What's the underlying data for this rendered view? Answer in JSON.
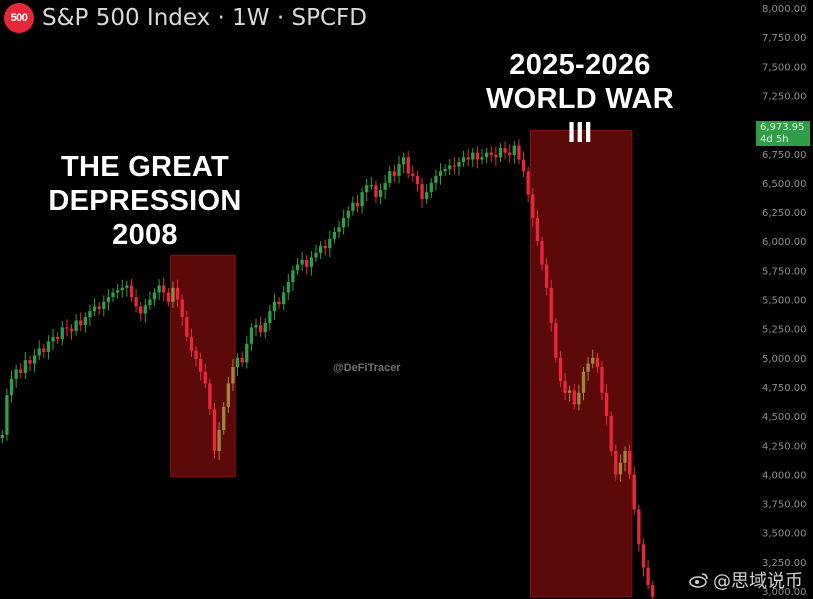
{
  "header": {
    "logo_text": "500",
    "title": "S&P 500 Index · 1W · SPCFD"
  },
  "annotations": {
    "depression_line1": "THE GREAT",
    "depression_line2": "DEPRESSION",
    "depression_line3": "2008",
    "war_line1": "2025-2026",
    "war_line2": "WORLD WAR III"
  },
  "watermark": "@DeFiTracer",
  "weibo_text": "@思域说币",
  "last_price": {
    "value": "6,973.95",
    "countdown": "4d 5h",
    "color": "#2f9e46"
  },
  "colors": {
    "up": "#2f9e46",
    "down": "#e8283a",
    "highlight": "#6b0a0a",
    "background": "#000000"
  },
  "chart_data": {
    "type": "candlestick",
    "ylim": [
      3000,
      8000
    ],
    "y_ticks": [
      3000,
      3250,
      3500,
      3750,
      4000,
      4250,
      4500,
      4750,
      5000,
      5250,
      5500,
      5750,
      6000,
      6250,
      6500,
      6750,
      7000,
      7250,
      7500,
      7750,
      8000
    ],
    "y_tick_labels": [
      "3,000.00",
      "3,250.00",
      "3,500.00",
      "3,750.00",
      "4,000.00",
      "4,250.00",
      "4,500.00",
      "4,750.00",
      "5,000.00",
      "5,250.00",
      "5,500.00",
      "5,750.00",
      "6,000.00",
      "6,250.00",
      "6,500.00",
      "6,750.00",
      "7,000.00",
      "7,250.00",
      "7,500.00",
      "7,750.00",
      "8,000.00"
    ],
    "closes": [
      4340,
      4680,
      4820,
      4900,
      4870,
      4980,
      4950,
      5020,
      5080,
      5050,
      5140,
      5180,
      5160,
      5260,
      5250,
      5230,
      5320,
      5280,
      5350,
      5400,
      5440,
      5420,
      5480,
      5520,
      5560,
      5580,
      5600,
      5620,
      5520,
      5440,
      5380,
      5450,
      5500,
      5560,
      5620,
      5560,
      5480,
      5600,
      5500,
      5350,
      5180,
      5060,
      4990,
      4880,
      4780,
      4560,
      4200,
      4380,
      4580,
      4780,
      4920,
      5000,
      4960,
      5120,
      5260,
      5280,
      5220,
      5300,
      5400,
      5480,
      5460,
      5560,
      5650,
      5750,
      5800,
      5840,
      5780,
      5860,
      5900,
      5960,
      5940,
      6020,
      6080,
      6120,
      6200,
      6260,
      6330,
      6300,
      6420,
      6480,
      6480,
      6380,
      6440,
      6500,
      6600,
      6560,
      6660,
      6720,
      6580,
      6560,
      6490,
      6360,
      6420,
      6500,
      6560,
      6600,
      6620,
      6650,
      6640,
      6680,
      6720,
      6700,
      6760,
      6700,
      6720,
      6760,
      6740,
      6720,
      6800,
      6760,
      6740,
      6820,
      6700,
      6600,
      6400,
      6200,
      6000,
      5800,
      5600,
      5300,
      5000,
      4800,
      4700,
      4720,
      4600,
      4700,
      4880,
      4950,
      5000,
      4920,
      4700,
      4500,
      4200,
      4000,
      4100,
      4200,
      4000,
      3700,
      3400,
      3200,
      3050,
      2950
    ],
    "markers": {
      "great_depression_2008": {
        "start_index": 37,
        "end_index": 50,
        "price_low": 3980,
        "price_high": 5880
      },
      "world_war_iii_2025_2026": {
        "start_index": 115,
        "end_index": 136,
        "price_low": 2950,
        "price_high": 6950
      }
    }
  }
}
